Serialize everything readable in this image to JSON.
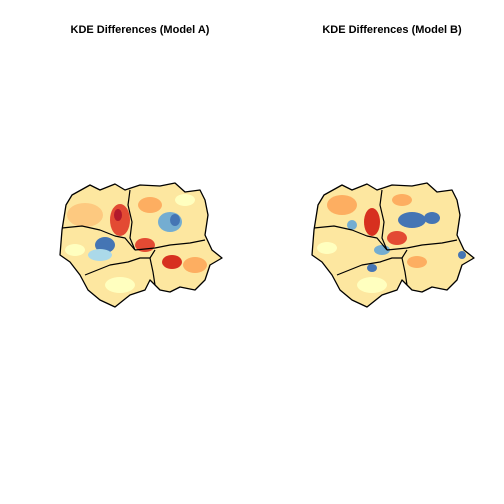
{
  "panels": [
    {
      "title": "KDE Differences (Model A)"
    },
    {
      "title": "KDE Differences (Model B)"
    }
  ]
}
